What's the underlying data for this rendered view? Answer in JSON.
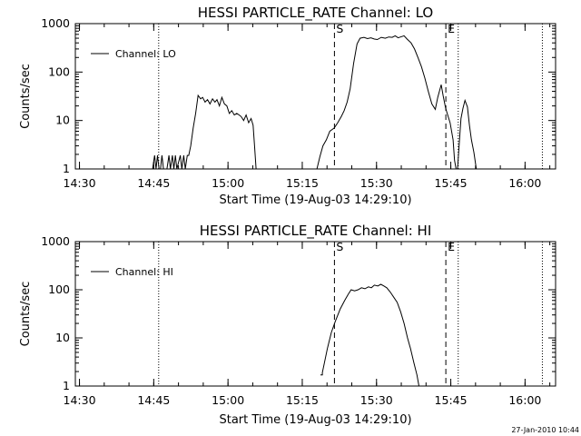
{
  "chart_data": [
    {
      "type": "line",
      "title": "HESSI PARTICLE_RATE Channel: LO",
      "xlabel": "Start Time (19-Aug-03 14:29:10)",
      "ylabel": "Counts/sec",
      "yscale": "log",
      "ylim": [
        1,
        1000
      ],
      "xlim_minutes": [
        0,
        97
      ],
      "xticks": [
        "14:30",
        "14:45",
        "15:00",
        "15:15",
        "15:30",
        "15:45",
        "16:00"
      ],
      "yticks": [
        "1",
        "10",
        "100",
        "1000"
      ],
      "legend": "Channel: LO",
      "legend_position": "top-left",
      "dashed_markers": [
        {
          "label": "S",
          "x": "15:21:30"
        },
        {
          "label": "E",
          "x": "15:44:00"
        }
      ],
      "dotted_markers": [
        "14:46:00",
        "15:46:30",
        "16:03:30"
      ],
      "series": [
        {
          "name": "Channel: LO",
          "segments": [
            [
              [
                15.6,
                1
              ],
              [
                16.0,
                1.9
              ],
              [
                16.3,
                1
              ],
              [
                16.6,
                1.9
              ],
              [
                16.9,
                1
              ],
              [
                17.2,
                1
              ],
              [
                17.5,
                1.9
              ],
              [
                17.8,
                1
              ],
              [
                18.5,
                1
              ],
              [
                18.9,
                1.9
              ],
              [
                19.2,
                1
              ],
              [
                19.6,
                1.9
              ],
              [
                19.9,
                1
              ],
              [
                20.2,
                1.9
              ],
              [
                20.5,
                1
              ],
              [
                21.2,
                1.9
              ],
              [
                21.5,
                1
              ],
              [
                21.9,
                1.9
              ],
              [
                22.2,
                1
              ],
              [
                22.6,
                1.9
              ],
              [
                22.9,
                1.9
              ],
              [
                23.3,
                3
              ],
              [
                23.8,
                7
              ],
              [
                24.3,
                14
              ],
              [
                24.8,
                33
              ],
              [
                25.3,
                28
              ],
              [
                25.7,
                30
              ],
              [
                26.2,
                24
              ],
              [
                26.7,
                27
              ],
              [
                27.2,
                22
              ],
              [
                27.7,
                28
              ],
              [
                28.2,
                24
              ],
              [
                28.6,
                27
              ],
              [
                29.1,
                20
              ],
              [
                29.6,
                30
              ],
              [
                30.1,
                22
              ],
              [
                30.6,
                20
              ],
              [
                31.1,
                14
              ],
              [
                31.6,
                16
              ],
              [
                32.1,
                13
              ],
              [
                32.6,
                14
              ],
              [
                33.1,
                13
              ],
              [
                33.5,
                12
              ],
              [
                34.0,
                10
              ],
              [
                34.5,
                13
              ],
              [
                35.0,
                9
              ],
              [
                35.5,
                11
              ],
              [
                35.9,
                8
              ],
              [
                36.2,
                3
              ],
              [
                36.5,
                1
              ]
            ],
            [
              [
                48.8,
                1
              ],
              [
                49.4,
                1.8
              ],
              [
                50.0,
                3
              ],
              [
                50.7,
                4
              ],
              [
                51.4,
                6
              ],
              [
                52.3,
                7
              ],
              [
                53.0,
                9
              ],
              [
                53.7,
                12
              ],
              [
                54.3,
                16
              ],
              [
                54.9,
                24
              ],
              [
                55.5,
                45
              ],
              [
                56.2,
                150
              ],
              [
                56.9,
                380
              ],
              [
                57.5,
                500
              ],
              [
                58.3,
                520
              ],
              [
                59.0,
                490
              ],
              [
                59.7,
                510
              ],
              [
                60.4,
                480
              ],
              [
                61.0,
                470
              ],
              [
                61.8,
                520
              ],
              [
                62.6,
                500
              ],
              [
                63.3,
                530
              ],
              [
                64.0,
                520
              ],
              [
                64.6,
                560
              ],
              [
                65.2,
                510
              ],
              [
                65.9,
                540
              ],
              [
                66.4,
                560
              ],
              [
                67.0,
                480
              ],
              [
                67.8,
                400
              ],
              [
                68.5,
                300
              ],
              [
                69.2,
                200
              ],
              [
                69.9,
                130
              ],
              [
                70.6,
                75
              ],
              [
                71.3,
                40
              ],
              [
                72.0,
                22
              ],
              [
                72.7,
                17
              ],
              [
                73.2,
                30
              ],
              [
                73.9,
                55
              ],
              [
                74.3,
                32
              ],
              [
                74.8,
                18
              ],
              [
                75.3,
                12
              ],
              [
                75.7,
                9
              ],
              [
                76.3,
                4
              ],
              [
                76.6,
                1.5
              ],
              [
                76.9,
                1
              ]
            ],
            [
              [
                77.2,
                1
              ],
              [
                77.5,
                3
              ],
              [
                77.9,
                11
              ],
              [
                78.3,
                18
              ],
              [
                78.7,
                26
              ],
              [
                79.2,
                19
              ],
              [
                79.6,
                8
              ],
              [
                80.0,
                4
              ],
              [
                80.5,
                2.2
              ],
              [
                81.0,
                1
              ]
            ]
          ]
        }
      ]
    },
    {
      "type": "line",
      "title": "HESSI PARTICLE_RATE Channel: HI",
      "xlabel": "Start Time (19-Aug-03 14:29:10)",
      "ylabel": "Counts/sec",
      "yscale": "log",
      "ylim": [
        1,
        1000
      ],
      "xlim_minutes": [
        0,
        97
      ],
      "xticks": [
        "14:30",
        "14:45",
        "15:00",
        "15:15",
        "15:30",
        "15:45",
        "16:00"
      ],
      "yticks": [
        "1",
        "10",
        "100",
        "1000"
      ],
      "legend": "Channel: HI",
      "legend_position": "top-left",
      "dashed_markers": [
        {
          "label": "S",
          "x": "15:21:30"
        },
        {
          "label": "E",
          "x": "15:44:00"
        }
      ],
      "dotted_markers": [
        "14:46:00",
        "15:46:30",
        "16:03:30"
      ],
      "series": [
        {
          "name": "Channel: HI",
          "segments": [
            [
              [
                49.5,
                1.7
              ],
              [
                49.9,
                1.7
              ],
              [
                49.9,
                1.9
              ],
              [
                50.3,
                3
              ],
              [
                50.9,
                6
              ],
              [
                51.7,
                13
              ],
              [
                52.5,
                22
              ],
              [
                53.5,
                40
              ],
              [
                54.4,
                60
              ],
              [
                55.1,
                80
              ],
              [
                55.7,
                100
              ],
              [
                56.4,
                95
              ],
              [
                57.1,
                100
              ],
              [
                57.8,
                110
              ],
              [
                58.5,
                105
              ],
              [
                59.2,
                115
              ],
              [
                59.8,
                110
              ],
              [
                60.4,
                125
              ],
              [
                61.1,
                120
              ],
              [
                61.7,
                130
              ],
              [
                62.3,
                120
              ],
              [
                62.9,
                110
              ],
              [
                63.6,
                90
              ],
              [
                64.3,
                70
              ],
              [
                65.0,
                55
              ],
              [
                65.7,
                35
              ],
              [
                66.4,
                20
              ],
              [
                67.1,
                10
              ],
              [
                67.7,
                6
              ],
              [
                68.4,
                3
              ],
              [
                69.0,
                1.7
              ],
              [
                69.4,
                1
              ]
            ]
          ]
        }
      ]
    }
  ],
  "footer": {
    "timestamp": "27-Jan-2010 10:44"
  }
}
